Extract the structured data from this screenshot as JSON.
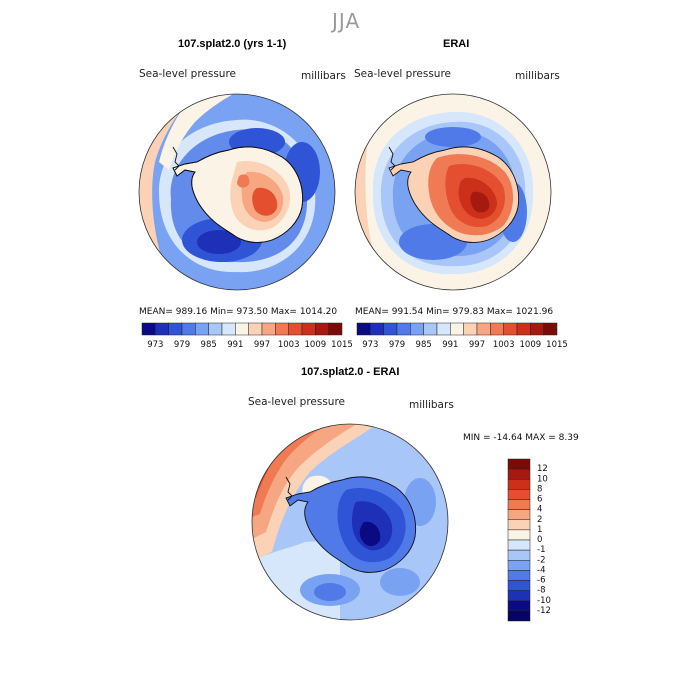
{
  "title": "JJA",
  "panels": [
    {
      "id": "model",
      "title": "107.splat2.0 (yrs 1-1)",
      "variable": "Sea-level pressure",
      "units": "millibars",
      "stats": {
        "mean": "989.16",
        "min": "973.50",
        "max": "1014.20"
      },
      "stats_text": "MEAN= 989.16   Min= 973.50   Max= 1014.20"
    },
    {
      "id": "obs",
      "title": "ERAI",
      "variable": "Sea-level pressure",
      "units": "millibars",
      "stats": {
        "mean": "991.54",
        "min": "979.83",
        "max": "1021.96"
      },
      "stats_text": "MEAN= 991.54   Min= 979.83   Max= 1021.96"
    },
    {
      "id": "diff",
      "title": "107.splat2.0 - ERAI",
      "variable": "Sea-level pressure",
      "units": "millibars",
      "stats": {
        "min": "-14.64",
        "max": "8.39"
      },
      "stats_text": "MIN = -14.64  MAX =   8.39"
    }
  ],
  "colorbar_abs": {
    "tick_labels": [
      "973",
      "979",
      "985",
      "991",
      "997",
      "1003",
      "1009",
      "1015"
    ],
    "colors": [
      "#0a0a82",
      "#1e2fb8",
      "#2f55d6",
      "#4f7ae8",
      "#7aa2f2",
      "#a9c6f8",
      "#d6e6fb",
      "#fbf3e6",
      "#fbd2b6",
      "#f7a682",
      "#f07a54",
      "#e4502f",
      "#cc2f1a",
      "#a51a10",
      "#7a0c08"
    ]
  },
  "colorbar_diff": {
    "tick_labels": [
      "12",
      "10",
      "8",
      "6",
      "4",
      "2",
      "1",
      "0",
      "-1",
      "-2",
      "-4",
      "-6",
      "-8",
      "-10",
      "-12"
    ],
    "colors": [
      "#7a0c08",
      "#a51a10",
      "#cc2f1a",
      "#e4502f",
      "#f07a54",
      "#f7a682",
      "#fbd2b6",
      "#fbf3e6",
      "#d6e6fb",
      "#a9c6f8",
      "#7aa2f2",
      "#4f7ae8",
      "#2f55d6",
      "#1e2fb8",
      "#0a0a82",
      "#050560"
    ]
  },
  "colors": {
    "deep_blue": "#0a0a82",
    "blue": "#2f55d6",
    "light_blue": "#a9c6f8",
    "white": "#fbf3e6",
    "light_red": "#fbd2b6",
    "red": "#e4502f",
    "dark_red": "#a51a10",
    "coast": "#111111"
  }
}
